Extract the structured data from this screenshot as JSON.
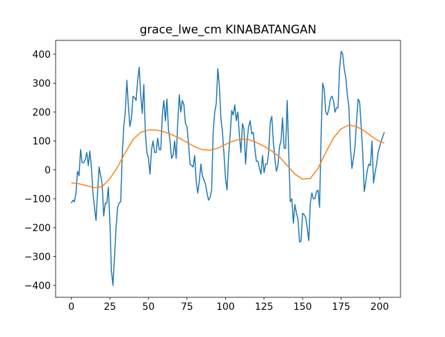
{
  "chart_data": {
    "type": "line",
    "title": "grace_lwe_cm KINABATANGAN",
    "xlim": [
      -10.2,
      213.5
    ],
    "ylim": [
      -441,
      448
    ],
    "xticks": [
      0,
      25,
      50,
      75,
      100,
      125,
      150,
      175,
      200
    ],
    "yticks": [
      {
        "value": -400,
        "label": "−400"
      },
      {
        "value": -300,
        "label": "−300"
      },
      {
        "value": -200,
        "label": "−200"
      },
      {
        "value": -100,
        "label": "−100"
      },
      0,
      100,
      200,
      300,
      400
    ],
    "series": [
      {
        "color": "#1f77b4",
        "x": [
          0,
          1,
          2,
          3,
          4,
          5,
          6,
          7,
          8,
          9,
          10,
          11,
          12,
          13,
          14,
          15,
          16,
          17,
          18,
          19,
          20,
          21,
          22,
          23,
          24,
          25,
          26,
          27,
          28,
          29,
          30,
          31,
          32,
          33,
          34,
          35,
          36,
          37,
          38,
          39,
          40,
          41,
          42,
          43,
          44,
          45,
          46,
          47,
          48,
          49,
          50,
          51,
          52,
          53,
          54,
          55,
          56,
          57,
          58,
          59,
          60,
          61,
          62,
          63,
          64,
          65,
          66,
          67,
          68,
          69,
          70,
          71,
          72,
          73,
          74,
          75,
          76,
          77,
          78,
          79,
          80,
          81,
          82,
          83,
          84,
          85,
          86,
          87,
          88,
          89,
          90,
          91,
          92,
          93,
          94,
          95,
          96,
          97,
          98,
          99,
          100,
          101,
          102,
          103,
          104,
          105,
          106,
          107,
          108,
          109,
          110,
          111,
          112,
          113,
          114,
          115,
          116,
          117,
          118,
          119,
          120,
          121,
          122,
          123,
          124,
          125,
          126,
          127,
          128,
          129,
          130,
          131,
          132,
          133,
          134,
          135,
          136,
          137,
          138,
          139,
          140,
          141,
          142,
          143,
          144,
          145,
          146,
          147,
          148,
          149,
          150,
          151,
          152,
          153,
          154,
          155,
          156,
          157,
          158,
          159,
          160,
          161,
          162,
          163,
          164,
          165,
          166,
          167,
          168,
          169,
          170,
          171,
          172,
          173,
          174,
          175,
          176,
          177,
          178,
          179,
          180,
          181,
          182,
          183,
          184,
          185,
          186,
          187,
          188,
          189,
          190,
          191,
          192,
          193,
          194,
          195,
          196,
          197,
          198,
          199,
          200,
          201,
          202,
          203
        ],
        "values": [
          -115,
          -105,
          -110,
          -80,
          -5,
          -20,
          70,
          25,
          25,
          35,
          60,
          15,
          65,
          10,
          -80,
          -130,
          -175,
          -80,
          10,
          -20,
          -50,
          -160,
          -115,
          -115,
          -60,
          -180,
          -350,
          -400,
          -300,
          -200,
          -130,
          -115,
          -110,
          50,
          150,
          200,
          310,
          220,
          150,
          180,
          255,
          250,
          240,
          310,
          355,
          260,
          195,
          295,
          130,
          60,
          40,
          -15,
          70,
          100,
          60,
          60,
          110,
          70,
          70,
          190,
          240,
          170,
          245,
          140,
          100,
          40,
          50,
          100,
          40,
          160,
          260,
          200,
          240,
          225,
          160,
          150,
          90,
          20,
          15,
          10,
          50,
          -40,
          -80,
          -40,
          20,
          -20,
          -35,
          -50,
          -80,
          -105,
          -95,
          -70,
          130,
          200,
          230,
          350,
          290,
          180,
          130,
          55,
          -30,
          -70,
          50,
          120,
          205,
          190,
          225,
          170,
          200,
          120,
          60,
          160,
          140,
          20,
          100,
          150,
          170,
          125,
          130,
          75,
          30,
          30,
          5,
          -15,
          50,
          -10,
          20,
          20,
          60,
          165,
          185,
          100,
          40,
          -5,
          15,
          80,
          100,
          180,
          75,
          75,
          240,
          60,
          -110,
          -100,
          -185,
          -120,
          -150,
          -170,
          -250,
          -245,
          -150,
          -155,
          -165,
          -200,
          -245,
          -115,
          -80,
          -100,
          -100,
          -75,
          -70,
          -130,
          120,
          300,
          280,
          200,
          190,
          210,
          245,
          255,
          240,
          200,
          215,
          215,
          350,
          410,
          400,
          350,
          320,
          260,
          220,
          80,
          5,
          40,
          80,
          170,
          245,
          235,
          150,
          60,
          -75,
          -40,
          0,
          20,
          15,
          100,
          -45,
          -10,
          20,
          60,
          80,
          100,
          115,
          130
        ]
      },
      {
        "color": "#ff7f0e",
        "x": [
          0,
          5,
          10,
          15,
          20,
          25,
          30,
          35,
          40,
          45,
          50,
          55,
          60,
          65,
          70,
          75,
          80,
          85,
          90,
          95,
          100,
          105,
          110,
          115,
          120,
          125,
          130,
          135,
          140,
          145,
          150,
          155,
          160,
          165,
          170,
          175,
          180,
          185,
          190,
          195,
          200,
          203
        ],
        "values": [
          -45,
          -48,
          -55,
          -62,
          -58,
          -30,
          10,
          60,
          105,
          130,
          138,
          138,
          132,
          122,
          110,
          95,
          80,
          70,
          68,
          75,
          88,
          100,
          107,
          105,
          95,
          82,
          65,
          45,
          15,
          -15,
          -32,
          -30,
          5,
          60,
          110,
          142,
          155,
          150,
          135,
          115,
          98,
          93
        ]
      }
    ]
  }
}
